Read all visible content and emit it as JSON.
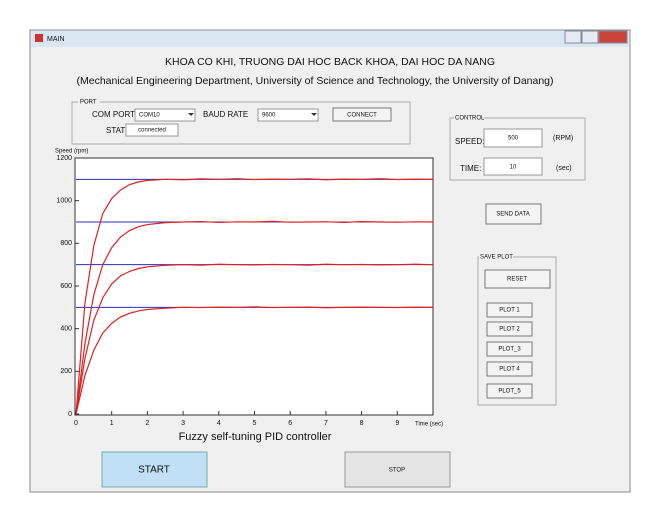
{
  "window": {
    "title": "MAIN"
  },
  "header": {
    "line1": "KHOA CO KHI, TRUONG DAI HOC BACK KHOA, DAI HOC DA NANG",
    "line2": "(Mechanical Engineering Department, University of Science and Technology, the University of Danang)"
  },
  "port": {
    "title": "PORT",
    "com_port_label": "COM PORT:",
    "com_port": "COM10",
    "baud_rate_label": "BAUD RATE",
    "baud_rate": "9600",
    "connect": "CONNECT",
    "status_label": "STATUS:",
    "status": "connected"
  },
  "control": {
    "title": "CONTROL",
    "speed_label": "SPEED:",
    "speed": "500",
    "speed_unit": "(RPM)",
    "time_label": "TIME:",
    "time": "10",
    "time_unit": "(sec)"
  },
  "send_data": "SEND DATA",
  "save_plot": {
    "title": "SAVE PLOT",
    "reset": "RESET",
    "plots": [
      "PLOT 1",
      "PLOT 2",
      "PLOT_3",
      "PLOT 4",
      "PLOT_5"
    ]
  },
  "start": "START",
  "stop": "STOP",
  "chart_data": {
    "type": "line",
    "title": "Fuzzy self-tuning PID controller",
    "x_label": "Time (sec)",
    "y_label": "Speed (rpm)",
    "xlim": [
      0,
      10
    ],
    "ylim": [
      0,
      1200
    ],
    "xticks": [
      0,
      1,
      2,
      3,
      4,
      5,
      6,
      7,
      8,
      9
    ],
    "yticks": [
      0,
      200,
      400,
      600,
      800,
      1000,
      1200
    ],
    "x": [
      0,
      0.25,
      0.5,
      0.75,
      1,
      1.25,
      1.5,
      1.75,
      2,
      2.5,
      3,
      3.5,
      4,
      4.5,
      5,
      5.5,
      6,
      6.5,
      7,
      7.5,
      8,
      8.5,
      9,
      9.5,
      10
    ],
    "reference_lines": {
      "color": "#2b2bb8",
      "values": [
        500,
        700,
        900,
        1100
      ]
    },
    "series": [
      {
        "color": "#e02020",
        "values": [
          0,
          520,
          790,
          940,
          1010,
          1050,
          1075,
          1088,
          1095,
          1100,
          1098,
          1102,
          1100,
          1103,
          1099,
          1101,
          1100,
          1102,
          1098,
          1101,
          1100,
          1103,
          1099,
          1101,
          1100
        ]
      },
      {
        "color": "#e02020",
        "values": [
          0,
          330,
          560,
          700,
          780,
          830,
          860,
          878,
          888,
          897,
          900,
          902,
          898,
          901,
          900,
          903,
          899,
          900,
          901,
          898,
          902,
          900,
          899,
          901,
          900
        ]
      },
      {
        "color": "#e02020",
        "values": [
          0,
          260,
          440,
          545,
          610,
          648,
          668,
          682,
          690,
          697,
          700,
          698,
          702,
          700,
          699,
          701,
          700,
          698,
          702,
          700,
          701,
          699,
          700,
          702,
          700
        ]
      },
      {
        "color": "#e02020",
        "values": [
          0,
          180,
          300,
          380,
          425,
          455,
          472,
          483,
          490,
          496,
          500,
          499,
          501,
          500,
          502,
          499,
          500,
          501,
          498,
          500,
          501,
          500,
          499,
          501,
          500
        ]
      }
    ]
  }
}
